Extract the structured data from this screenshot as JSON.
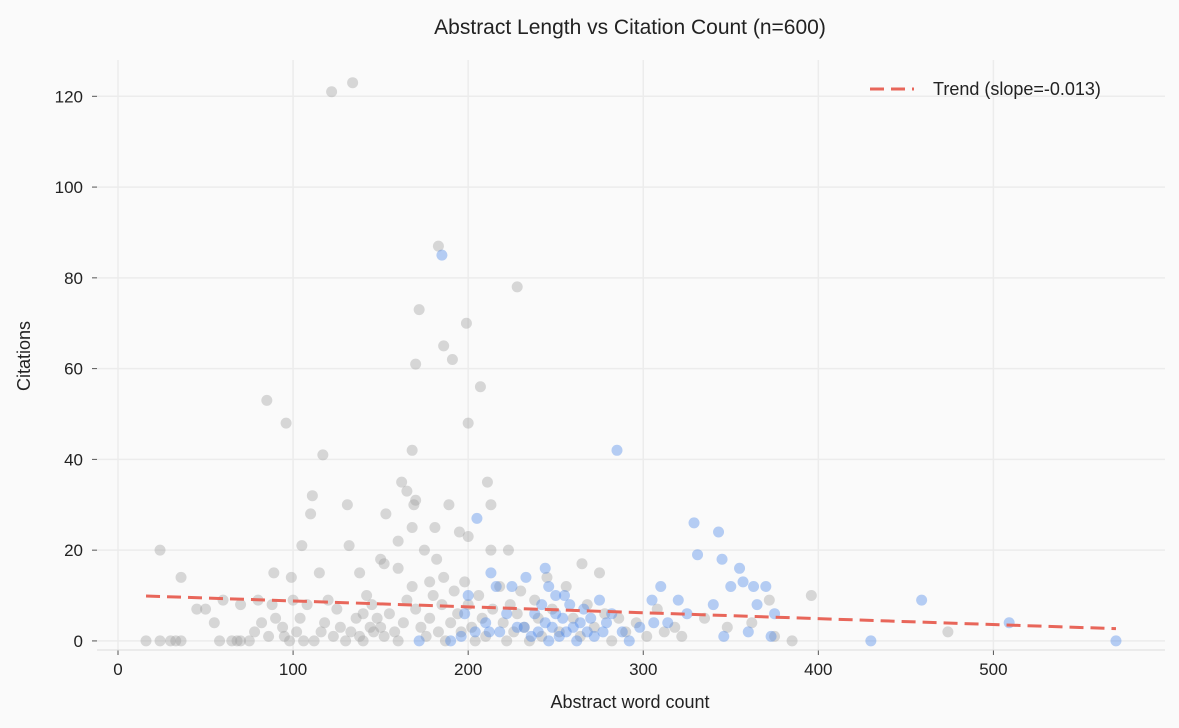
{
  "chart_data": {
    "type": "scatter",
    "title": "Abstract Length vs Citation Count (n=600)",
    "xlabel": "Abstract word count",
    "ylabel": "Citations",
    "xlim": [
      -12,
      598
    ],
    "ylim": [
      -2,
      128
    ],
    "xticks": [
      0,
      100,
      200,
      300,
      400,
      500
    ],
    "yticks": [
      0,
      20,
      40,
      60,
      80,
      100,
      120
    ],
    "grid": true,
    "legend_position": "top-right",
    "colors": {
      "group_a": "#a0a0a0",
      "group_b": "#4a86e8",
      "trend": "#e8665a",
      "grid": "#ececec",
      "background": "#fafafa"
    },
    "trend": {
      "label": "Trend (slope=-0.013)",
      "slope": -0.013,
      "x": [
        16,
        570
      ],
      "y": [
        9.9,
        2.7
      ]
    },
    "points_note": "approximate subset of 600 points; [x, citations, group] with group 0 = grey, 1 = blue",
    "points": [
      [
        122,
        121,
        0
      ],
      [
        134,
        123,
        0
      ],
      [
        183,
        87,
        0
      ],
      [
        186,
        65,
        0
      ],
      [
        228,
        78,
        0
      ],
      [
        199,
        70,
        0
      ],
      [
        172,
        73,
        0
      ],
      [
        191,
        62,
        0
      ],
      [
        170,
        61,
        0
      ],
      [
        207,
        56,
        0
      ],
      [
        85,
        53,
        0
      ],
      [
        96,
        48,
        0
      ],
      [
        117,
        41,
        0
      ],
      [
        168,
        42,
        0
      ],
      [
        200,
        48,
        0
      ],
      [
        111,
        32,
        0
      ],
      [
        110,
        28,
        0
      ],
      [
        131,
        30,
        0
      ],
      [
        170,
        31,
        0
      ],
      [
        169,
        30,
        0
      ],
      [
        162,
        35,
        0
      ],
      [
        165,
        33,
        0
      ],
      [
        189,
        30,
        0
      ],
      [
        211,
        35,
        0
      ],
      [
        213,
        30,
        0
      ],
      [
        105,
        21,
        0
      ],
      [
        132,
        21,
        0
      ],
      [
        153,
        28,
        0
      ],
      [
        181,
        25,
        0
      ],
      [
        168,
        25,
        0
      ],
      [
        160,
        22,
        0
      ],
      [
        24,
        20,
        0
      ],
      [
        36,
        14,
        0
      ],
      [
        89,
        15,
        0
      ],
      [
        99,
        14,
        0
      ],
      [
        115,
        15,
        0
      ],
      [
        138,
        15,
        0
      ],
      [
        182,
        18,
        0
      ],
      [
        200,
        23,
        0
      ],
      [
        195,
        24,
        0
      ],
      [
        213,
        20,
        0
      ],
      [
        223,
        20,
        0
      ],
      [
        265,
        17,
        0
      ],
      [
        275,
        15,
        0
      ],
      [
        396,
        10,
        0
      ],
      [
        385,
        0,
        0
      ],
      [
        474,
        2,
        0
      ],
      [
        16,
        0,
        0
      ],
      [
        24,
        0,
        0
      ],
      [
        30,
        0,
        0
      ],
      [
        33,
        0,
        0
      ],
      [
        36,
        0,
        0
      ],
      [
        45,
        7,
        0
      ],
      [
        50,
        7,
        0
      ],
      [
        55,
        4,
        0
      ],
      [
        58,
        0,
        0
      ],
      [
        65,
        0,
        0
      ],
      [
        68,
        0,
        0
      ],
      [
        70,
        0,
        0
      ],
      [
        60,
        9,
        0
      ],
      [
        70,
        8,
        0
      ],
      [
        80,
        9,
        0
      ],
      [
        82,
        4,
        0
      ],
      [
        90,
        5,
        0
      ],
      [
        94,
        3,
        0
      ],
      [
        100,
        9,
        0
      ],
      [
        104,
        5,
        0
      ],
      [
        108,
        8,
        0
      ],
      [
        120,
        9,
        0
      ],
      [
        125,
        7,
        0
      ],
      [
        140,
        6,
        0
      ],
      [
        150,
        18,
        0
      ],
      [
        152,
        17,
        0
      ],
      [
        160,
        16,
        0
      ],
      [
        175,
        20,
        0
      ],
      [
        178,
        13,
        0
      ],
      [
        186,
        14,
        0
      ],
      [
        142,
        10,
        0
      ],
      [
        145,
        8,
        0
      ],
      [
        148,
        5,
        0
      ],
      [
        150,
        3,
        0
      ],
      [
        152,
        1,
        0
      ],
      [
        155,
        6,
        0
      ],
      [
        158,
        2,
        0
      ],
      [
        160,
        0,
        0
      ],
      [
        163,
        4,
        0
      ],
      [
        165,
        9,
        0
      ],
      [
        168,
        12,
        0
      ],
      [
        170,
        7,
        0
      ],
      [
        173,
        3,
        0
      ],
      [
        176,
        1,
        0
      ],
      [
        178,
        5,
        0
      ],
      [
        180,
        10,
        0
      ],
      [
        183,
        2,
        0
      ],
      [
        185,
        8,
        0
      ],
      [
        187,
        0,
        0
      ],
      [
        190,
        4,
        0
      ],
      [
        192,
        11,
        0
      ],
      [
        194,
        6,
        0
      ],
      [
        196,
        2,
        0
      ],
      [
        198,
        13,
        0
      ],
      [
        200,
        8,
        0
      ],
      [
        202,
        3,
        0
      ],
      [
        204,
        0,
        0
      ],
      [
        206,
        10,
        0
      ],
      [
        208,
        5,
        0
      ],
      [
        210,
        1,
        0
      ],
      [
        214,
        7,
        0
      ],
      [
        218,
        12,
        0
      ],
      [
        220,
        4,
        0
      ],
      [
        222,
        0,
        0
      ],
      [
        224,
        8,
        0
      ],
      [
        226,
        2,
        0
      ],
      [
        228,
        6,
        0
      ],
      [
        230,
        11,
        0
      ],
      [
        232,
        3,
        0
      ],
      [
        235,
        0,
        0
      ],
      [
        238,
        9,
        0
      ],
      [
        240,
        5,
        0
      ],
      [
        242,
        1,
        0
      ],
      [
        245,
        14,
        0
      ],
      [
        248,
        7,
        0
      ],
      [
        252,
        2,
        0
      ],
      [
        256,
        12,
        0
      ],
      [
        260,
        5,
        0
      ],
      [
        264,
        1,
        0
      ],
      [
        268,
        8,
        0
      ],
      [
        272,
        3,
        0
      ],
      [
        278,
        6,
        0
      ],
      [
        282,
        0,
        0
      ],
      [
        286,
        5,
        0
      ],
      [
        290,
        2,
        0
      ],
      [
        296,
        4,
        0
      ],
      [
        302,
        1,
        0
      ],
      [
        308,
        7,
        0
      ],
      [
        312,
        2,
        0
      ],
      [
        318,
        3,
        0
      ],
      [
        322,
        1,
        0
      ],
      [
        335,
        5,
        0
      ],
      [
        348,
        3,
        0
      ],
      [
        362,
        4,
        0
      ],
      [
        372,
        9,
        0
      ],
      [
        375,
        1,
        0
      ],
      [
        112,
        0,
        0
      ],
      [
        116,
        2,
        0
      ],
      [
        118,
        4,
        0
      ],
      [
        123,
        1,
        0
      ],
      [
        127,
        3,
        0
      ],
      [
        130,
        0,
        0
      ],
      [
        133,
        2,
        0
      ],
      [
        136,
        5,
        0
      ],
      [
        138,
        1,
        0
      ],
      [
        140,
        0,
        0
      ],
      [
        144,
        3,
        0
      ],
      [
        146,
        2,
        0
      ],
      [
        95,
        1,
        0
      ],
      [
        98,
        0,
        0
      ],
      [
        102,
        2,
        0
      ],
      [
        106,
        0,
        0
      ],
      [
        86,
        1,
        0
      ],
      [
        78,
        2,
        0
      ],
      [
        75,
        0,
        0
      ],
      [
        88,
        8,
        0
      ],
      [
        185,
        85,
        1
      ],
      [
        285,
        42,
        1
      ],
      [
        205,
        27,
        1
      ],
      [
        329,
        26,
        1
      ],
      [
        343,
        24,
        1
      ],
      [
        331,
        19,
        1
      ],
      [
        345,
        18,
        1
      ],
      [
        213,
        15,
        1
      ],
      [
        216,
        12,
        1
      ],
      [
        225,
        12,
        1
      ],
      [
        233,
        14,
        1
      ],
      [
        310,
        12,
        1
      ],
      [
        350,
        12,
        1
      ],
      [
        363,
        12,
        1
      ],
      [
        370,
        12,
        1
      ],
      [
        357,
        13,
        1
      ],
      [
        355,
        16,
        1
      ],
      [
        459,
        9,
        1
      ],
      [
        509,
        4,
        1
      ],
      [
        430,
        0,
        1
      ],
      [
        570,
        0,
        1
      ],
      [
        375,
        6,
        1
      ],
      [
        373,
        1,
        1
      ],
      [
        340,
        8,
        1
      ],
      [
        320,
        9,
        1
      ],
      [
        305,
        9,
        1
      ],
      [
        306,
        4,
        1
      ],
      [
        346,
        1,
        1
      ],
      [
        360,
        2,
        1
      ],
      [
        365,
        8,
        1
      ],
      [
        212,
        2,
        1
      ],
      [
        190,
        0,
        1
      ],
      [
        200,
        10,
        1
      ],
      [
        198,
        6,
        1
      ],
      [
        244,
        16,
        1
      ],
      [
        246,
        12,
        1
      ],
      [
        250,
        10,
        1
      ],
      [
        255,
        10,
        1
      ],
      [
        232,
        3,
        1
      ],
      [
        236,
        1,
        1
      ],
      [
        238,
        6,
        1
      ],
      [
        240,
        2,
        1
      ],
      [
        242,
        8,
        1
      ],
      [
        244,
        4,
        1
      ],
      [
        246,
        0,
        1
      ],
      [
        248,
        3,
        1
      ],
      [
        250,
        6,
        1
      ],
      [
        252,
        1,
        1
      ],
      [
        254,
        5,
        1
      ],
      [
        256,
        2,
        1
      ],
      [
        258,
        8,
        1
      ],
      [
        260,
        3,
        1
      ],
      [
        262,
        0,
        1
      ],
      [
        264,
        4,
        1
      ],
      [
        266,
        7,
        1
      ],
      [
        268,
        2,
        1
      ],
      [
        270,
        5,
        1
      ],
      [
        272,
        1,
        1
      ],
      [
        275,
        9,
        1
      ],
      [
        277,
        2,
        1
      ],
      [
        279,
        4,
        1
      ],
      [
        282,
        6,
        1
      ],
      [
        288,
        2,
        1
      ],
      [
        292,
        0,
        1
      ],
      [
        298,
        3,
        1
      ],
      [
        314,
        4,
        1
      ],
      [
        325,
        6,
        1
      ],
      [
        210,
        4,
        1
      ],
      [
        218,
        2,
        1
      ],
      [
        222,
        6,
        1
      ],
      [
        228,
        3,
        1
      ],
      [
        172,
        0,
        1
      ],
      [
        196,
        1,
        1
      ],
      [
        204,
        2,
        1
      ]
    ]
  }
}
